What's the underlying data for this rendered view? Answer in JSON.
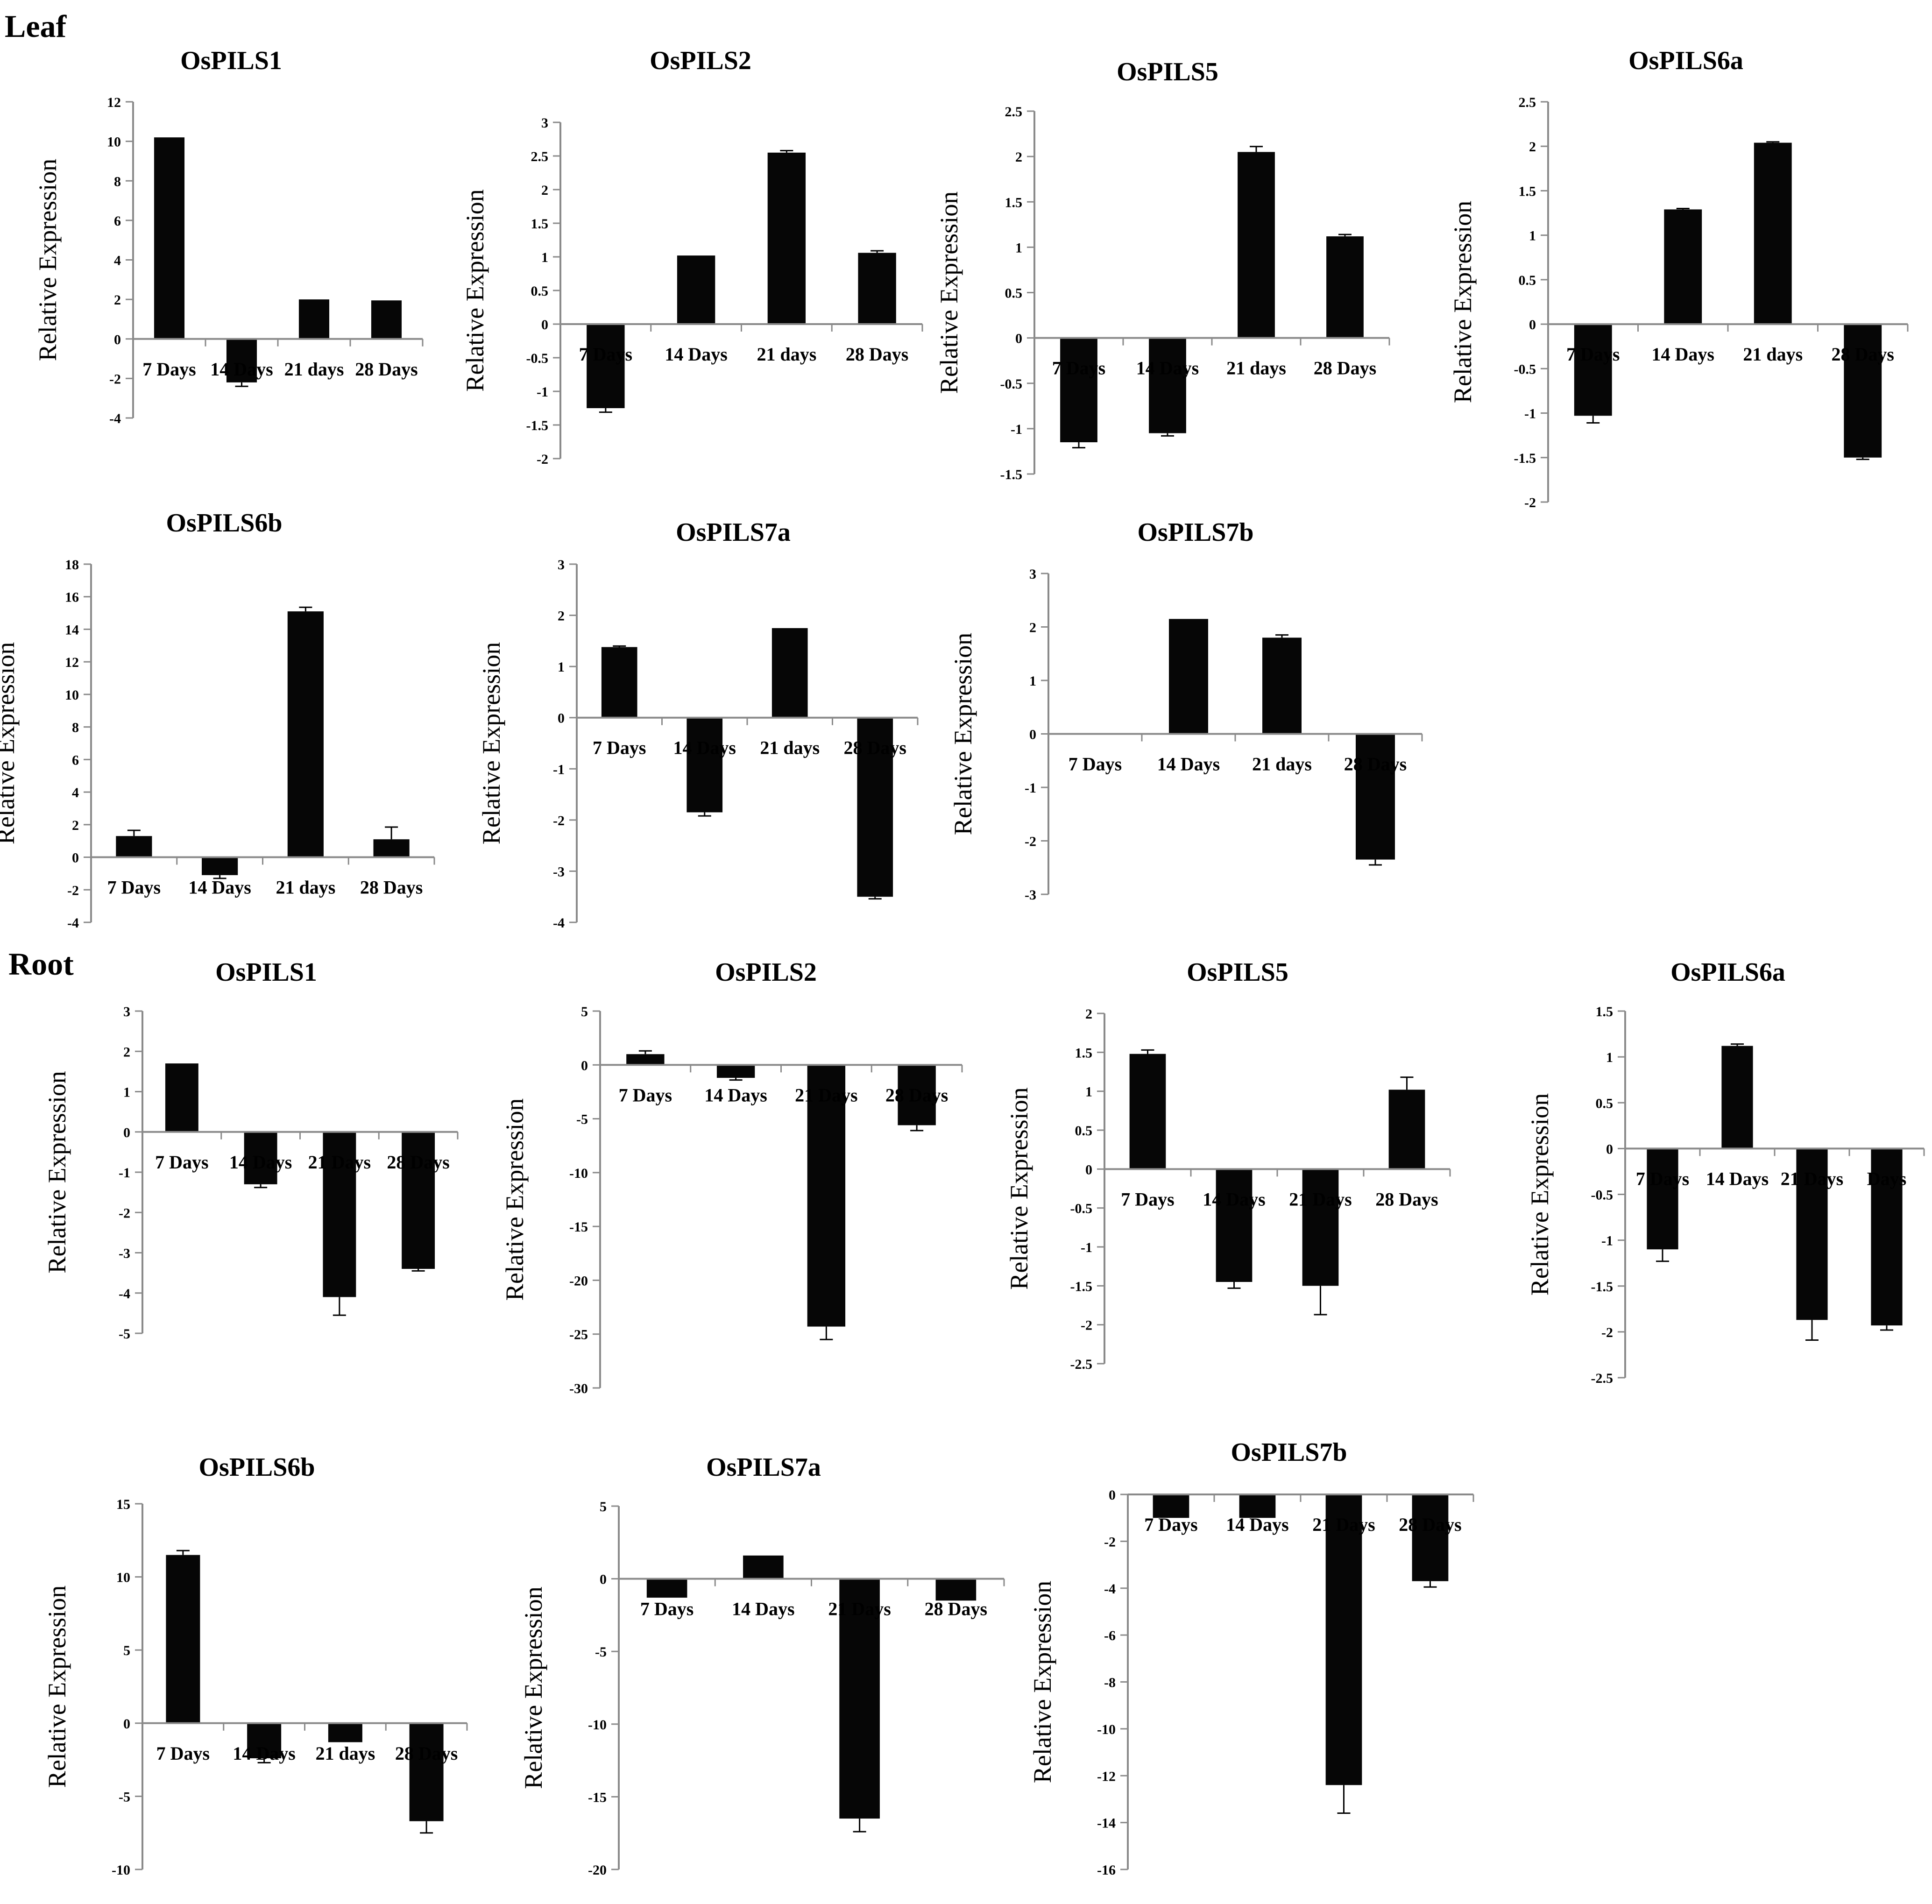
{
  "sections": {
    "leaf": "Leaf",
    "root": "Root"
  },
  "chart_data": [
    {
      "section": "Leaf",
      "type": "bar",
      "title": "OsPILS1",
      "ylabel": "Relative Expression",
      "categories": [
        "7 Days",
        "14 Days",
        "21 days",
        "28 Days"
      ],
      "values": [
        10.2,
        -2.2,
        2.0,
        1.95
      ],
      "errors": [
        0.0,
        0.2,
        0.0,
        0.0
      ],
      "ylim": [
        -4,
        12
      ],
      "yticks": [
        -4,
        -2,
        0,
        2,
        4,
        6,
        8,
        10,
        12
      ]
    },
    {
      "section": "Leaf",
      "type": "bar",
      "title": "OsPILS2",
      "ylabel": "Relative Expression",
      "categories": [
        "7 Days",
        "14 Days",
        "21 days",
        "28 Days"
      ],
      "values": [
        -1.25,
        1.02,
        2.55,
        1.06
      ],
      "errors": [
        0.06,
        0.0,
        0.03,
        0.03
      ],
      "ylim": [
        -2,
        3
      ],
      "yticks": [
        -2,
        -1.5,
        -1,
        -0.5,
        0,
        0.5,
        1,
        1.5,
        2,
        2.5,
        3
      ]
    },
    {
      "section": "Leaf",
      "type": "bar",
      "title": "OsPILS5",
      "ylabel": "Relative Expression",
      "categories": [
        "7 Days",
        "14 Days",
        "21 days",
        "28 Days"
      ],
      "values": [
        -1.15,
        -1.05,
        2.05,
        1.12
      ],
      "errors": [
        0.06,
        0.03,
        0.06,
        0.02
      ],
      "ylim": [
        -1.5,
        2.5
      ],
      "yticks": [
        -1.5,
        -1,
        -0.5,
        0,
        0.5,
        1,
        1.5,
        2,
        2.5
      ]
    },
    {
      "section": "Leaf",
      "type": "bar",
      "title": "OsPILS6a",
      "ylabel": "Relative Expression",
      "categories": [
        "7 Days",
        "14 Days",
        "21 days",
        "28 Days"
      ],
      "values": [
        -1.03,
        1.29,
        2.04,
        -1.5
      ],
      "errors": [
        0.08,
        0.01,
        0.01,
        0.02
      ],
      "ylim": [
        -2,
        2.5
      ],
      "yticks": [
        -2,
        -1.5,
        -1,
        -0.5,
        0,
        0.5,
        1,
        1.5,
        2,
        2.5
      ]
    },
    {
      "section": "Leaf",
      "type": "bar",
      "title": "OsPILS6b",
      "ylabel": "Relative Expression",
      "categories": [
        "7 Days",
        "14 Days",
        "21 days",
        "28 Days"
      ],
      "values": [
        1.3,
        -1.1,
        15.1,
        1.1
      ],
      "errors": [
        0.35,
        0.2,
        0.25,
        0.75
      ],
      "ylim": [
        -4,
        18
      ],
      "yticks": [
        -4,
        -2,
        0,
        2,
        4,
        6,
        8,
        10,
        12,
        14,
        16,
        18
      ]
    },
    {
      "section": "Leaf",
      "type": "bar",
      "title": "OsPILS7a",
      "ylabel": "Relative Expression",
      "categories": [
        "7 Days",
        "14 Days",
        "21 days",
        "28 Days"
      ],
      "values": [
        1.38,
        -1.85,
        1.75,
        -3.5
      ],
      "errors": [
        0.02,
        0.07,
        0.0,
        0.04
      ],
      "ylim": [
        -4,
        3
      ],
      "yticks": [
        -4,
        -3,
        -2,
        -1,
        0,
        1,
        2,
        3
      ]
    },
    {
      "section": "Leaf",
      "type": "bar",
      "title": "OsPILS7b",
      "ylabel": "Relative Expression",
      "categories": [
        "7 Days",
        "14 Days",
        "21 days",
        "28 Days"
      ],
      "values": [
        0.0,
        2.15,
        1.8,
        -2.35
      ],
      "errors": [
        0.0,
        0.0,
        0.05,
        0.1
      ],
      "ylim": [
        -3,
        3
      ],
      "yticks": [
        -3,
        -2,
        -1,
        0,
        1,
        2,
        3
      ]
    },
    {
      "section": "Root",
      "type": "bar",
      "title": "OsPILS1",
      "ylabel": "Relative Expression",
      "categories": [
        "7 Days",
        "14 Days",
        "21 Days",
        "28 Days"
      ],
      "values": [
        1.7,
        -1.3,
        -4.1,
        -3.4
      ],
      "errors": [
        0.0,
        0.08,
        0.45,
        0.05
      ],
      "ylim": [
        -5,
        3
      ],
      "yticks": [
        -5,
        -4,
        -3,
        -2,
        -1,
        0,
        1,
        2,
        3
      ]
    },
    {
      "section": "Root",
      "type": "bar",
      "title": "OsPILS2",
      "ylabel": "Relative Expression",
      "categories": [
        "7 Days",
        "14 Days",
        "21 Days",
        "28 Days"
      ],
      "values": [
        1.0,
        -1.2,
        -24.3,
        -5.6
      ],
      "errors": [
        0.3,
        0.2,
        1.2,
        0.5
      ],
      "ylim": [
        -30,
        5
      ],
      "yticks": [
        -30,
        -25,
        -20,
        -15,
        -10,
        -5,
        0,
        5
      ]
    },
    {
      "section": "Root",
      "type": "bar",
      "title": "OsPILS5",
      "ylabel": "Relative Expression",
      "categories": [
        "7 Days",
        "14 Days",
        "21 Days",
        "28 Days"
      ],
      "values": [
        1.48,
        -1.45,
        -1.5,
        1.02
      ],
      "errors": [
        0.05,
        0.08,
        0.37,
        0.16
      ],
      "ylim": [
        -2.5,
        2
      ],
      "yticks": [
        -2.5,
        -2,
        -1.5,
        -1,
        -0.5,
        0,
        0.5,
        1,
        1.5,
        2
      ]
    },
    {
      "section": "Root",
      "type": "bar",
      "title": "OsPILS6a",
      "ylabel": "Relative Expression",
      "categories": [
        "7 Days",
        "14 Days",
        "21 Days",
        "Days"
      ],
      "values": [
        -1.1,
        1.12,
        -1.87,
        -1.93
      ],
      "errors": [
        0.13,
        0.02,
        0.22,
        0.05
      ],
      "ylim": [
        -2.5,
        1.5
      ],
      "yticks": [
        -2.5,
        -2,
        -1.5,
        -1,
        -0.5,
        0,
        0.5,
        1,
        1.5
      ]
    },
    {
      "section": "Root",
      "type": "bar",
      "title": "OsPILS6b",
      "ylabel": "Relative Expression",
      "categories": [
        "7 Days",
        "14 Days",
        "21 days",
        "28 Days"
      ],
      "values": [
        11.5,
        -2.4,
        -1.3,
        -6.7
      ],
      "errors": [
        0.3,
        0.3,
        0.0,
        0.8
      ],
      "ylim": [
        -10,
        15
      ],
      "yticks": [
        -10,
        -5,
        0,
        5,
        10,
        15
      ]
    },
    {
      "section": "Root",
      "type": "bar",
      "title": "OsPILS7a",
      "ylabel": "Relative Expression",
      "categories": [
        "7 Days",
        "14 Days",
        "21 Days",
        "28 Days"
      ],
      "values": [
        -1.3,
        1.6,
        -16.5,
        -1.5
      ],
      "errors": [
        0.0,
        0.0,
        0.9,
        0.0
      ],
      "ylim": [
        -20,
        5
      ],
      "yticks": [
        -20,
        -15,
        -10,
        -5,
        0,
        5
      ]
    },
    {
      "section": "Root",
      "type": "bar",
      "title": "OsPILS7b",
      "ylabel": "Relative Expression",
      "categories": [
        "7 Days",
        "14 Days",
        "21 Days",
        "28 Days"
      ],
      "values": [
        -1.0,
        -1.0,
        -12.4,
        -3.7
      ],
      "errors": [
        0.0,
        0.0,
        1.2,
        0.25
      ],
      "ylim": [
        -16,
        0
      ],
      "yticks": [
        -16,
        -14,
        -12,
        -10,
        -8,
        -6,
        -4,
        -2,
        0
      ]
    }
  ]
}
